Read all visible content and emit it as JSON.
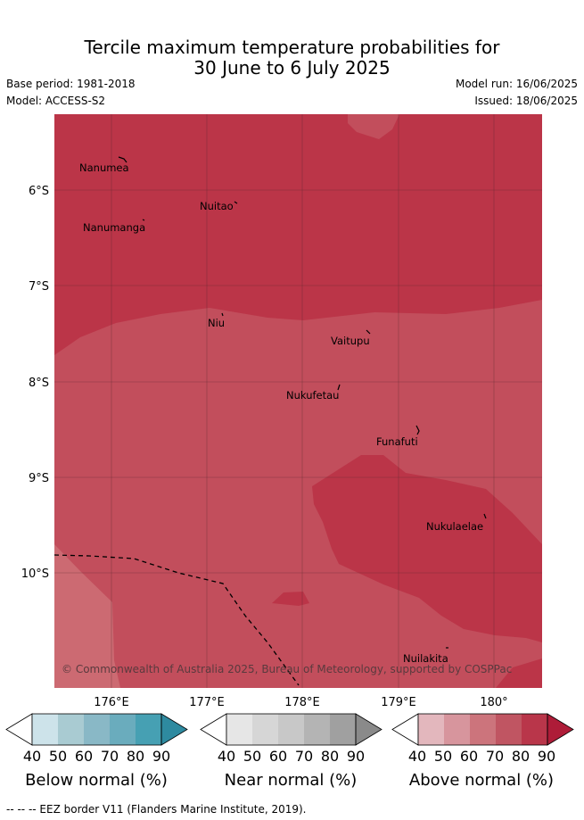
{
  "title": {
    "line1": "Tercile maximum temperature probabilities for",
    "line2": "30 June to 6 July 2025"
  },
  "meta": {
    "base_period": "Base period: 1981-2018",
    "model": "Model: ACCESS-S2",
    "model_run": "Model run: 16/06/2025",
    "issued": "Issued: 18/06/2025"
  },
  "map": {
    "lat_labels": [
      "6°S",
      "7°S",
      "8°S",
      "9°S",
      "10°S"
    ],
    "lon_labels": [
      "176°E",
      "177°E",
      "178°E",
      "179°E",
      "180°"
    ],
    "places": [
      "Nanumea",
      "Nuitao",
      "Nanumanga",
      "Niu",
      "Vaitupu",
      "Nukufetau",
      "Funafuti",
      "Nukulaelae",
      "Nuilakita"
    ],
    "copyright": "© Commonwealth of Australia 2025, Bureau of Meteorology, supported by COSPPac",
    "colors": {
      "above_80": "#bb3548",
      "above_70": "#c24e5c",
      "above_60": "#cc6a72",
      "border": "#000000"
    }
  },
  "legends": [
    {
      "label": "Below normal (%)",
      "ticks": [
        "40",
        "50",
        "60",
        "70",
        "80",
        "90"
      ],
      "colors": [
        "#ffffff",
        "#cde3ea",
        "#a9cbd2",
        "#89b8c6",
        "#6aacbd",
        "#46a0b3",
        "#2e8aa0"
      ]
    },
    {
      "label": "Near normal (%)",
      "ticks": [
        "40",
        "50",
        "60",
        "70",
        "80",
        "90"
      ],
      "colors": [
        "#ffffff",
        "#e6e6e6",
        "#d6d6d6",
        "#c8c8c8",
        "#b4b4b4",
        "#a0a0a0",
        "#8a8a8a"
      ]
    },
    {
      "label": "Above normal (%)",
      "ticks": [
        "40",
        "50",
        "60",
        "70",
        "80",
        "90"
      ],
      "colors": [
        "#ffffff",
        "#e3b7bd",
        "#d7959d",
        "#cc747c",
        "#c05562",
        "#b9364a",
        "#ae1c38"
      ]
    }
  ],
  "footer": "--  --  -- EEZ border V11 (Flanders Marine Institute, 2019)."
}
